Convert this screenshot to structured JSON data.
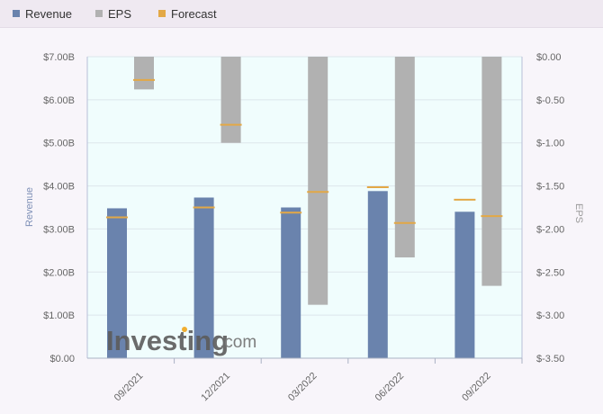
{
  "chart_data": {
    "type": "bar",
    "legend": [
      {
        "label": "Revenue",
        "color": "#6a83ad"
      },
      {
        "label": "EPS",
        "color": "#b1b1b1"
      },
      {
        "label": "Forecast",
        "color": "#e3a846"
      }
    ],
    "legend_position": "top-left",
    "categories": [
      "09/2021",
      "12/2021",
      "03/2022",
      "06/2022",
      "09/2022"
    ],
    "series": [
      {
        "name": "Revenue",
        "axis": "left",
        "values": [
          3.48,
          3.73,
          3.5,
          3.88,
          3.4
        ],
        "forecast": [
          3.27,
          3.5,
          3.38,
          3.97,
          3.68
        ]
      },
      {
        "name": "EPS",
        "axis": "right",
        "values": [
          -0.38,
          -1.0,
          -2.88,
          -2.33,
          -2.66
        ],
        "forecast": [
          -0.27,
          -0.79,
          -1.57,
          -1.93,
          -1.85
        ]
      }
    ],
    "left_axis": {
      "title": "Revenue",
      "min": 0,
      "max": 7,
      "ticks": [
        0,
        1,
        2,
        3,
        4,
        5,
        6,
        7
      ],
      "tick_labels": [
        "$0.00",
        "$1.00B",
        "$2.00B",
        "$3.00B",
        "$4.00B",
        "$5.00B",
        "$6.00B",
        "$7.00B"
      ]
    },
    "right_axis": {
      "title": "EPS",
      "min": -3.5,
      "max": 0,
      "ticks": [
        0,
        -0.5,
        -1,
        -1.5,
        -2,
        -2.5,
        -3,
        -3.5
      ],
      "tick_labels": [
        "$0.00",
        "$-0.50",
        "$-1.00",
        "$-1.50",
        "$-2.00",
        "$-2.50",
        "$-3.00",
        "$-3.50"
      ]
    },
    "grid": true
  },
  "watermark": {
    "brand": "Investing",
    "suffix": ".com"
  },
  "colors": {
    "plot_background": "#f0fdfd",
    "grid": "#dde6ec",
    "axis": "#b8bfd8",
    "forecast_line": "#e3a846"
  }
}
